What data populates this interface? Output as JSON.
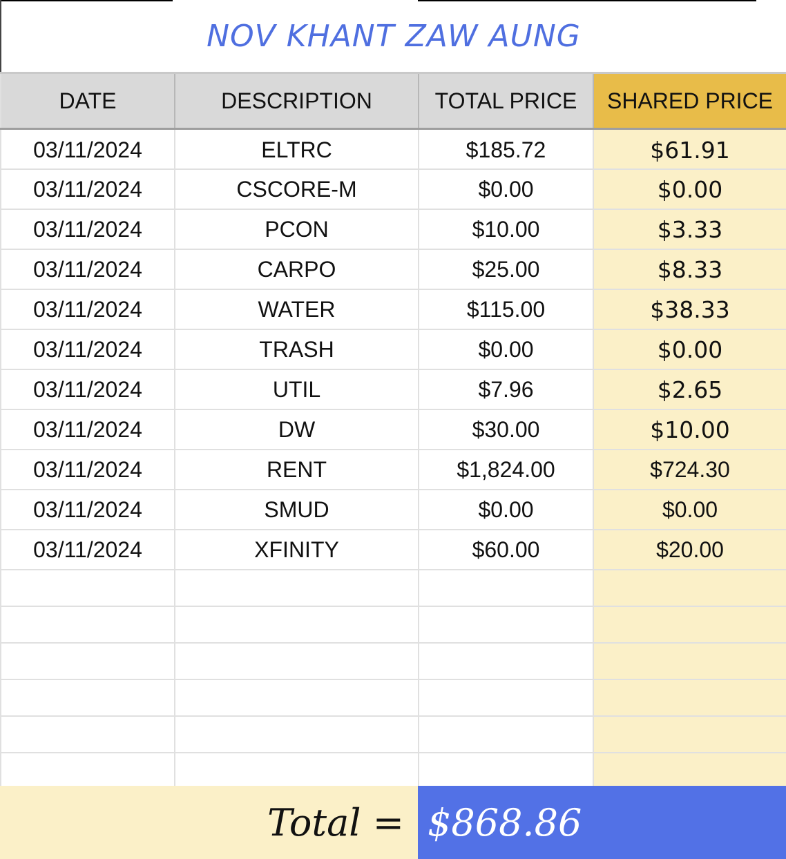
{
  "sheet": {
    "title": "NOV KHANT ZAW AUNG",
    "columns": [
      "DATE",
      "DESCRIPTION",
      "TOTAL PRICE",
      "SHARED PRICE"
    ],
    "rows": [
      {
        "date": "03/11/2024",
        "description": "ELTRC",
        "total_price": "$185.72",
        "shared_price": "$61.91"
      },
      {
        "date": "03/11/2024",
        "description": "CSCORE-M",
        "total_price": "$0.00",
        "shared_price": "$0.00"
      },
      {
        "date": "03/11/2024",
        "description": "PCON",
        "total_price": "$10.00",
        "shared_price": "$3.33"
      },
      {
        "date": "03/11/2024",
        "description": "CARPO",
        "total_price": "$25.00",
        "shared_price": "$8.33"
      },
      {
        "date": "03/11/2024",
        "description": "WATER",
        "total_price": "$115.00",
        "shared_price": "$38.33"
      },
      {
        "date": "03/11/2024",
        "description": "TRASH",
        "total_price": "$0.00",
        "shared_price": "$0.00"
      },
      {
        "date": "03/11/2024",
        "description": "UTIL",
        "total_price": "$7.96",
        "shared_price": "$2.65"
      },
      {
        "date": "03/11/2024",
        "description": "DW",
        "total_price": "$30.00",
        "shared_price": "$10.00"
      },
      {
        "date": "03/11/2024",
        "description": "RENT",
        "total_price": "$1,824.00",
        "shared_price": "$724.30"
      },
      {
        "date": "03/11/2024",
        "description": "SMUD",
        "total_price": "$0.00",
        "shared_price": "$0.00"
      },
      {
        "date": "03/11/2024",
        "description": "XFINITY",
        "total_price": "$60.00",
        "shared_price": "$20.00"
      }
    ],
    "total_label": "Total =",
    "total_value": "$868.86"
  },
  "colors": {
    "title_text": "#4f6fe0",
    "header_bg": "#d9d9d9",
    "shared_header_bg": "#e8bc49",
    "shared_cell_bg": "#fbf0c8",
    "total_label_bg": "#fbf0c8",
    "total_value_bg": "#5271e6"
  }
}
